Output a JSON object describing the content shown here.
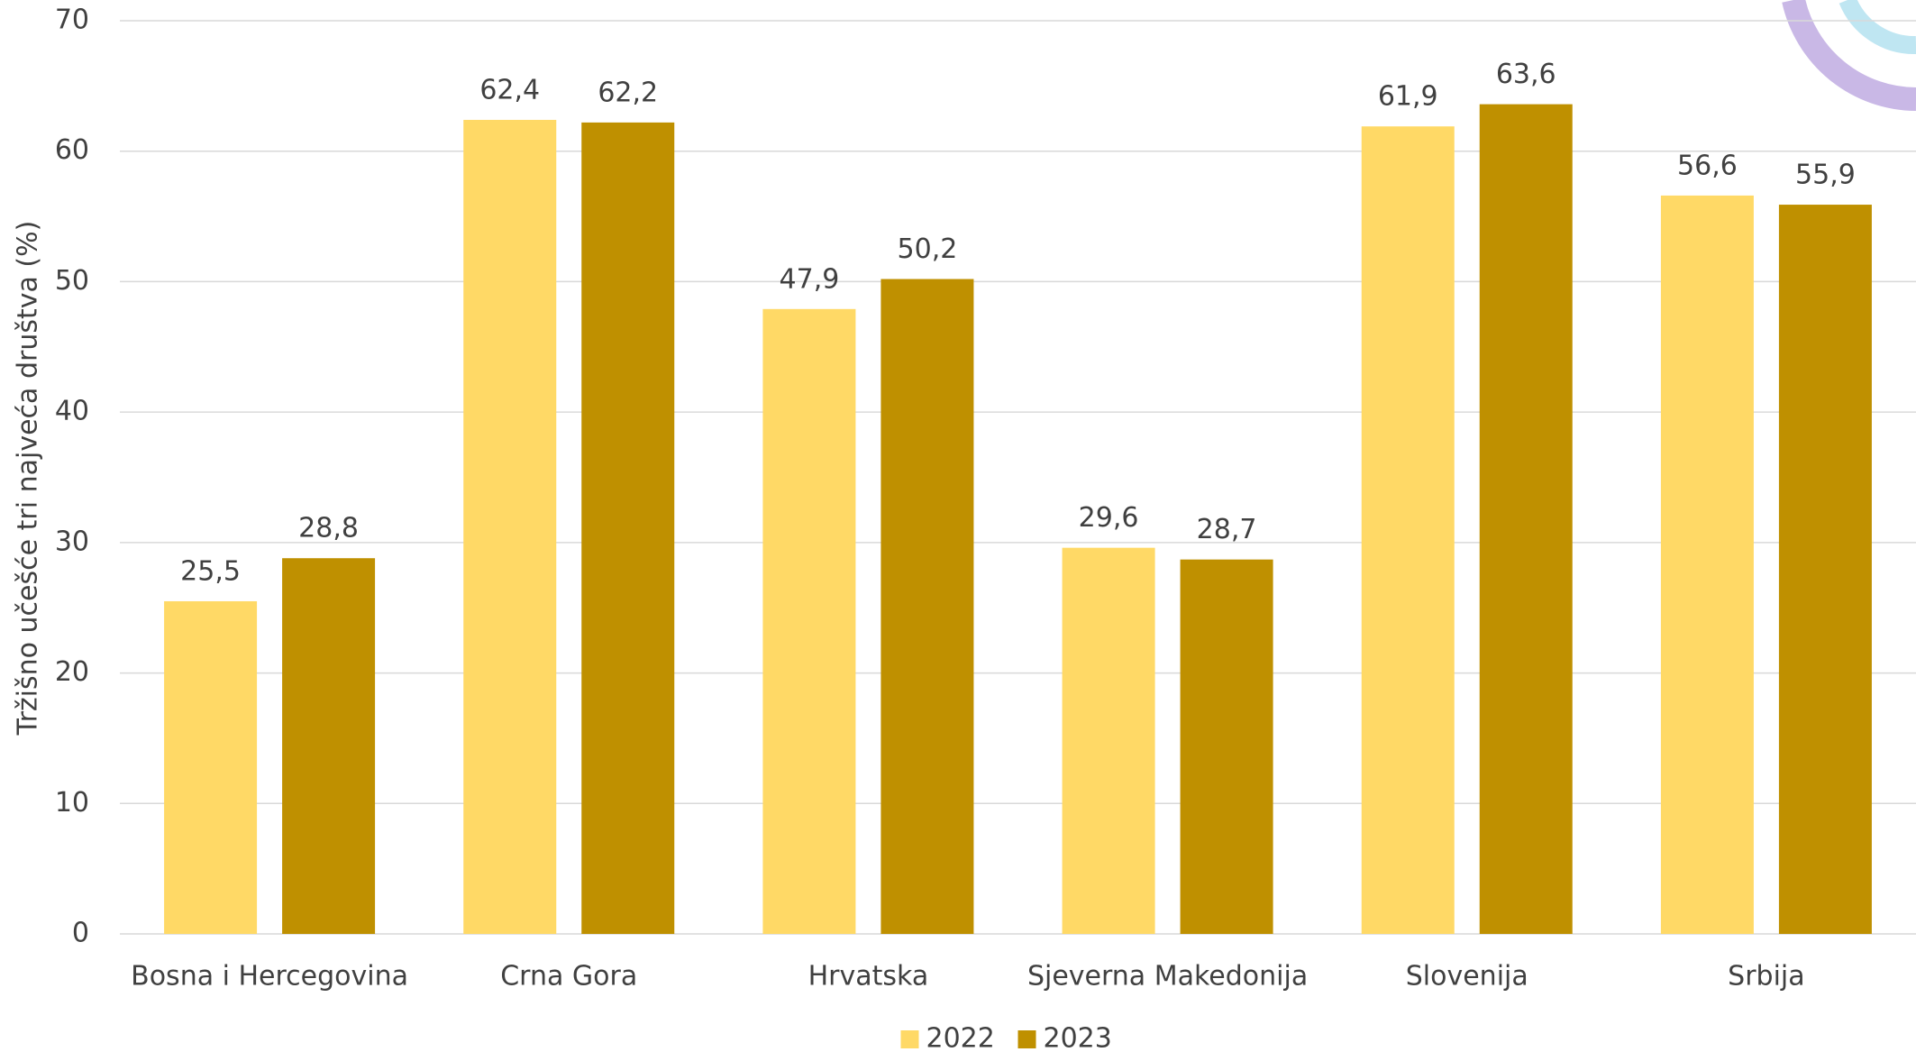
{
  "chart_data": {
    "type": "bar",
    "y_label": "Tržišno učešće tri najveća društva (%)",
    "categories": [
      "Bosna i Hercegovina",
      "Crna Gora",
      "Hrvatska",
      "Sjeverna Makedonija",
      "Slovenija",
      "Srbija"
    ],
    "series": [
      {
        "name": "2022",
        "color": "#FFD966",
        "values": [
          25.5,
          62.4,
          47.9,
          29.6,
          61.9,
          56.6
        ],
        "value_labels": [
          "25,5",
          "62,4",
          "47,9",
          "29,6",
          "61,9",
          "56,6"
        ]
      },
      {
        "name": "2023",
        "color": "#BF9000",
        "values": [
          28.8,
          62.2,
          50.2,
          28.7,
          63.6,
          55.9
        ],
        "value_labels": [
          "28,8",
          "62,2",
          "50,2",
          "28,7",
          "63,6",
          "55,9"
        ]
      }
    ],
    "ylim": [
      0,
      70
    ],
    "yticks": [
      0,
      10,
      20,
      30,
      40,
      50,
      60,
      70
    ],
    "grid": true,
    "legend": "bottom"
  }
}
